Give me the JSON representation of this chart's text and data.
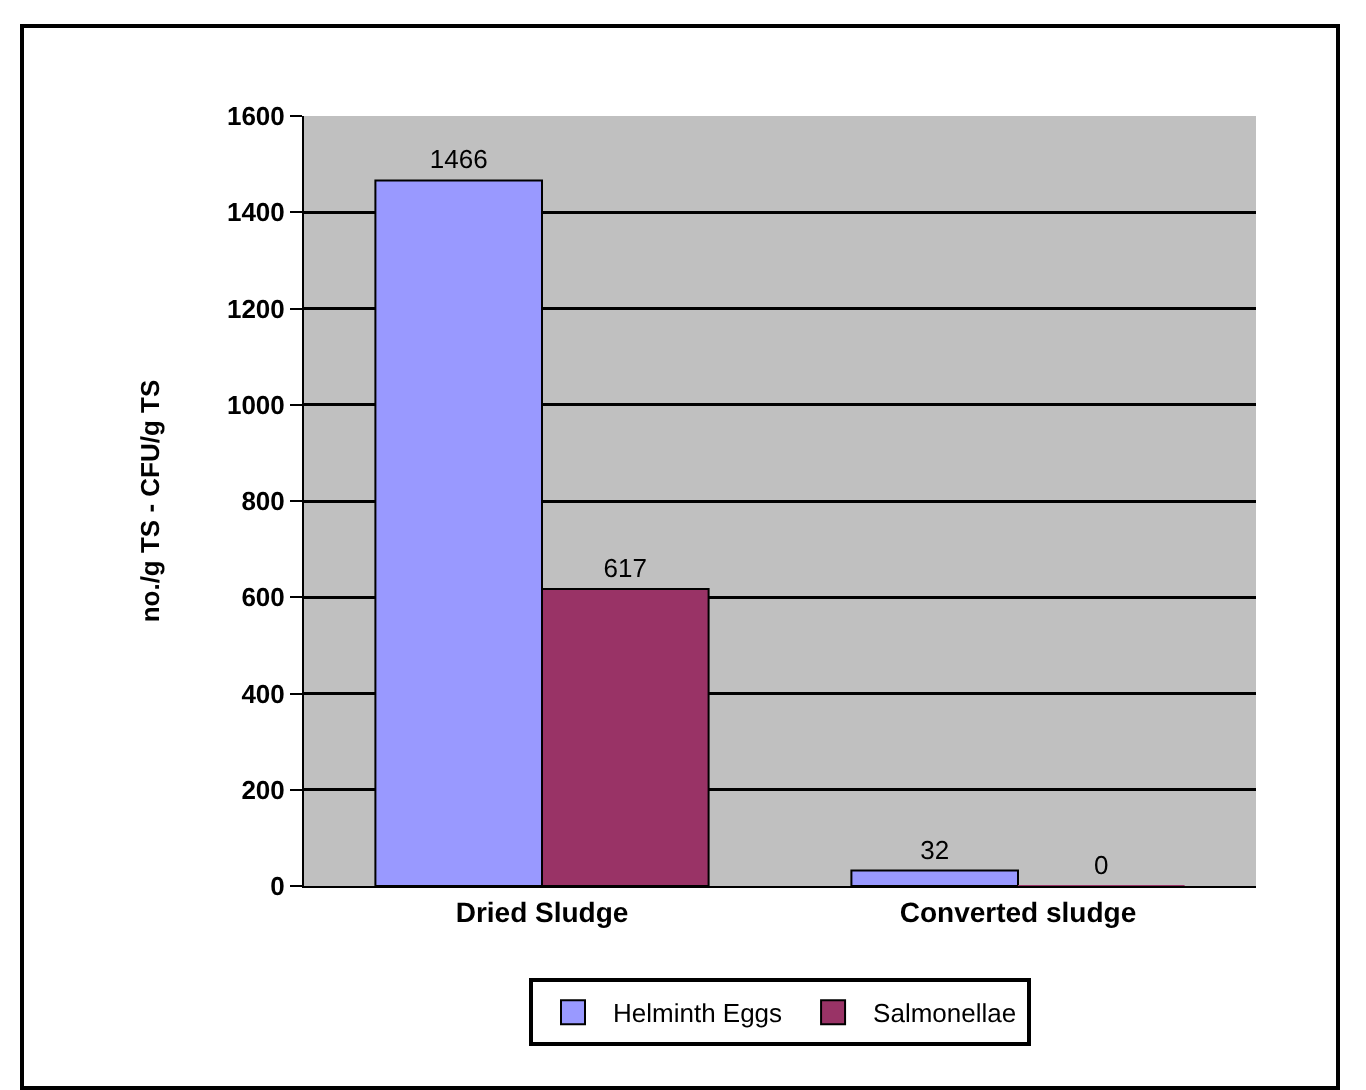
{
  "chart_data": {
    "type": "bar",
    "ylabel": "no./g TS - CFU/g TS",
    "categories": [
      "Dried Sludge",
      "Converted sludge"
    ],
    "series": [
      {
        "name": "Helminth Eggs",
        "color": "#9999ff",
        "values": [
          1466,
          32
        ]
      },
      {
        "name": "Salmonellae",
        "color": "#993366",
        "values": [
          617,
          0
        ]
      }
    ],
    "ylim": [
      0,
      1600
    ],
    "yticks": [
      0,
      200,
      400,
      600,
      800,
      1000,
      1200,
      1400,
      1600
    ],
    "grid": "y",
    "legend": "bottom",
    "data_labels": true
  }
}
